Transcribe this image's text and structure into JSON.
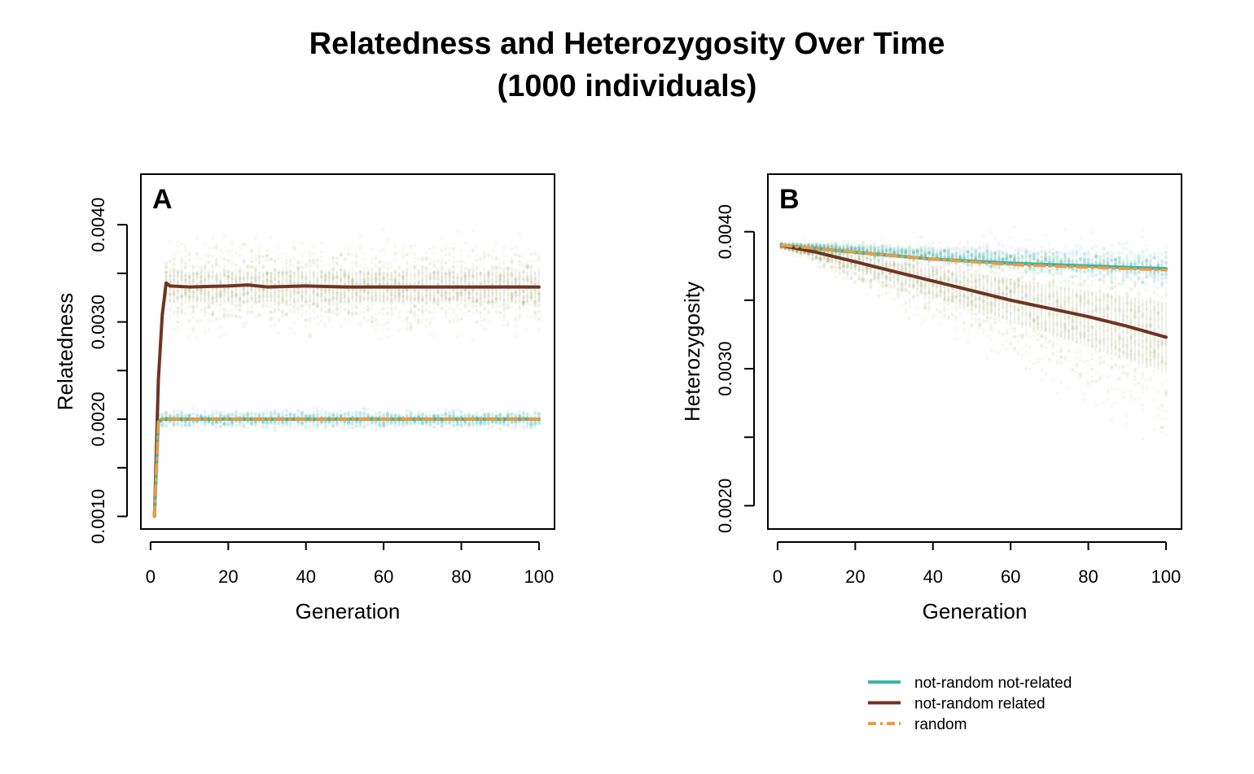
{
  "title_line1": "Relatedness and Heterozygosity Over Time",
  "title_line2": "(1000 individuals)",
  "colors": {
    "not_random_not_related": "#3DB3A7",
    "not_random_related": "#6E3423",
    "random": "#F29A3C",
    "cloud": "#6E7A2C"
  },
  "chart_data": [
    {
      "type": "line",
      "panel_label": "A",
      "xlabel": "Generation",
      "ylabel": "Relatedness",
      "xlim": [
        -2.5,
        104
      ],
      "ylim": [
        0.00087,
        0.00452
      ],
      "x_ticks": [
        0,
        20,
        40,
        60,
        80,
        100
      ],
      "x_tick_labels": [
        "0",
        "20",
        "40",
        "60",
        "80",
        "100"
      ],
      "y_ticks": [
        0.001,
        0.0015,
        0.002,
        0.0025,
        0.003,
        0.0035,
        0.004
      ],
      "y_tick_labels": [
        "0.0010",
        "",
        "0.0020",
        "",
        "0.0030",
        "",
        "0.0040"
      ],
      "series": [
        {
          "key": "not_random_related",
          "x": [
            1,
            2,
            3,
            4,
            5,
            10,
            20,
            25,
            30,
            40,
            50,
            60,
            70,
            80,
            90,
            100
          ],
          "y": [
            0.001,
            0.0024,
            0.00307,
            0.0034,
            0.00337,
            0.00336,
            0.00337,
            0.00338,
            0.00336,
            0.00337,
            0.00336,
            0.00336,
            0.00336,
            0.00336,
            0.00336,
            0.00336
          ]
        },
        {
          "key": "not_random_not_related",
          "x": [
            1,
            2,
            3,
            10,
            50,
            100
          ],
          "y": [
            0.001,
            0.00197,
            0.002,
            0.002,
            0.002,
            0.002
          ]
        },
        {
          "key": "random",
          "x": [
            1,
            2,
            3,
            10,
            50,
            100
          ],
          "y": [
            0.001,
            0.00197,
            0.002,
            0.002,
            0.002,
            0.002
          ]
        }
      ],
      "bands": [
        {
          "key": "not_random_related",
          "x_from": 4,
          "x_to": 100,
          "center": 0.00336,
          "spread": 0.00045
        },
        {
          "key": "not_random_not_related",
          "x_from": 2,
          "x_to": 100,
          "center": 0.002,
          "spread": 9e-05
        }
      ]
    },
    {
      "type": "line",
      "panel_label": "B",
      "xlabel": "Generation",
      "ylabel": "Heterozygosity",
      "xlim": [
        -2.5,
        104
      ],
      "ylim": [
        0.00183,
        0.00442
      ],
      "x_ticks": [
        0,
        20,
        40,
        60,
        80,
        100
      ],
      "x_tick_labels": [
        "0",
        "20",
        "40",
        "60",
        "80",
        "100"
      ],
      "y_ticks": [
        0.002,
        0.0025,
        0.003,
        0.0035,
        0.004
      ],
      "y_tick_labels": [
        "0.0020",
        "",
        "0.0030",
        "",
        "0.0040"
      ],
      "series": [
        {
          "key": "not_random_not_related",
          "x": [
            1,
            20,
            40,
            60,
            80,
            100
          ],
          "y": [
            0.0039,
            0.00385,
            0.0038,
            0.00377,
            0.00375,
            0.00373
          ]
        },
        {
          "key": "not_random_related",
          "x": [
            1,
            10,
            20,
            30,
            40,
            50,
            60,
            70,
            80,
            90,
            100
          ],
          "y": [
            0.0039,
            0.00385,
            0.00378,
            0.00371,
            0.00364,
            0.00357,
            0.0035,
            0.00344,
            0.00338,
            0.00331,
            0.00323
          ]
        },
        {
          "key": "random",
          "x": [
            1,
            20,
            40,
            60,
            80,
            100
          ],
          "y": [
            0.0039,
            0.00385,
            0.0038,
            0.00376,
            0.00374,
            0.00372
          ]
        }
      ],
      "bands": [
        {
          "key": "not_random_related",
          "x_from": 1,
          "x_to": 100,
          "center_from": 0.0039,
          "center_to": 0.00323,
          "spread_from": 2e-05,
          "spread_to": 0.00072
        },
        {
          "key": "not_random_not_related",
          "x_from": 1,
          "x_to": 100,
          "center_from": 0.0039,
          "center_to": 0.00373,
          "spread_from": 2e-05,
          "spread_to": 0.00014
        }
      ]
    }
  ],
  "legend": {
    "placement": "bottom-right",
    "items": [
      {
        "key": "not_random_not_related",
        "label": "not-random not-related",
        "dashed": false
      },
      {
        "key": "not_random_related",
        "label": "not-random related",
        "dashed": false
      },
      {
        "key": "random",
        "label": "random",
        "dashed": true
      }
    ]
  }
}
